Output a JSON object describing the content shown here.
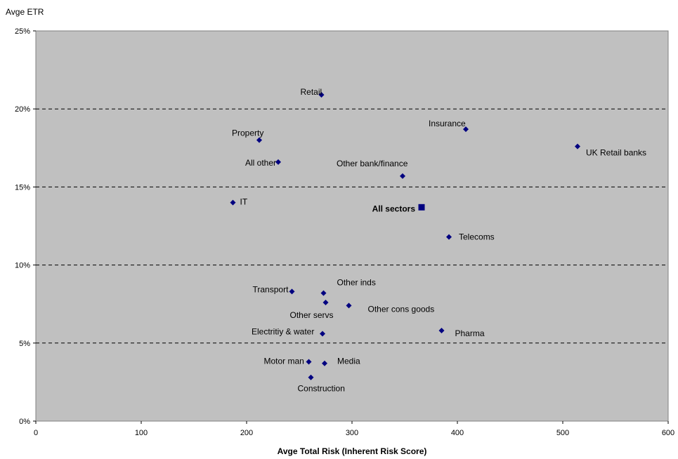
{
  "chart_data": {
    "type": "scatter",
    "xlabel": "Avge Total Risk (Inherent Risk Score)",
    "ylabel": "Avge ETR",
    "xlim": [
      0,
      600
    ],
    "ylim": [
      0,
      25
    ],
    "x_ticks": [
      "0",
      "100",
      "200",
      "300",
      "400",
      "500",
      "600"
    ],
    "y_ticks": [
      "0%",
      "5%",
      "10%",
      "15%",
      "20%",
      "25%"
    ],
    "grid": "horizontal dashed",
    "background": "#c0c0c0",
    "marker_color": "#000080",
    "points": [
      {
        "label": "Retail",
        "x": 271,
        "y": 20.9
      },
      {
        "label": "Insurance",
        "x": 408,
        "y": 18.7
      },
      {
        "label": "UK Retail banks",
        "x": 514,
        "y": 17.6
      },
      {
        "label": "Property",
        "x": 212,
        "y": 18.0
      },
      {
        "label": "All other",
        "x": 230,
        "y": 16.6
      },
      {
        "label": "Other bank/finance",
        "x": 348,
        "y": 15.7
      },
      {
        "label": "IT",
        "x": 187,
        "y": 14.0
      },
      {
        "label": "All sectors",
        "x": 366,
        "y": 13.7,
        "highlight": true
      },
      {
        "label": "Telecoms",
        "x": 392,
        "y": 11.8
      },
      {
        "label": "Transport",
        "x": 243,
        "y": 8.3
      },
      {
        "label": "Other inds",
        "x": 273,
        "y": 8.2
      },
      {
        "label": "Other servs",
        "x": 275,
        "y": 7.6
      },
      {
        "label": "Other cons goods",
        "x": 297,
        "y": 7.4
      },
      {
        "label": "Pharma",
        "x": 385,
        "y": 5.8
      },
      {
        "label": "Electritiy & water",
        "x": 272,
        "y": 5.6
      },
      {
        "label": "Motor man",
        "x": 259,
        "y": 3.8
      },
      {
        "label": "Media",
        "x": 274,
        "y": 3.7
      },
      {
        "label": "Construction",
        "x": 261,
        "y": 2.8
      }
    ]
  }
}
